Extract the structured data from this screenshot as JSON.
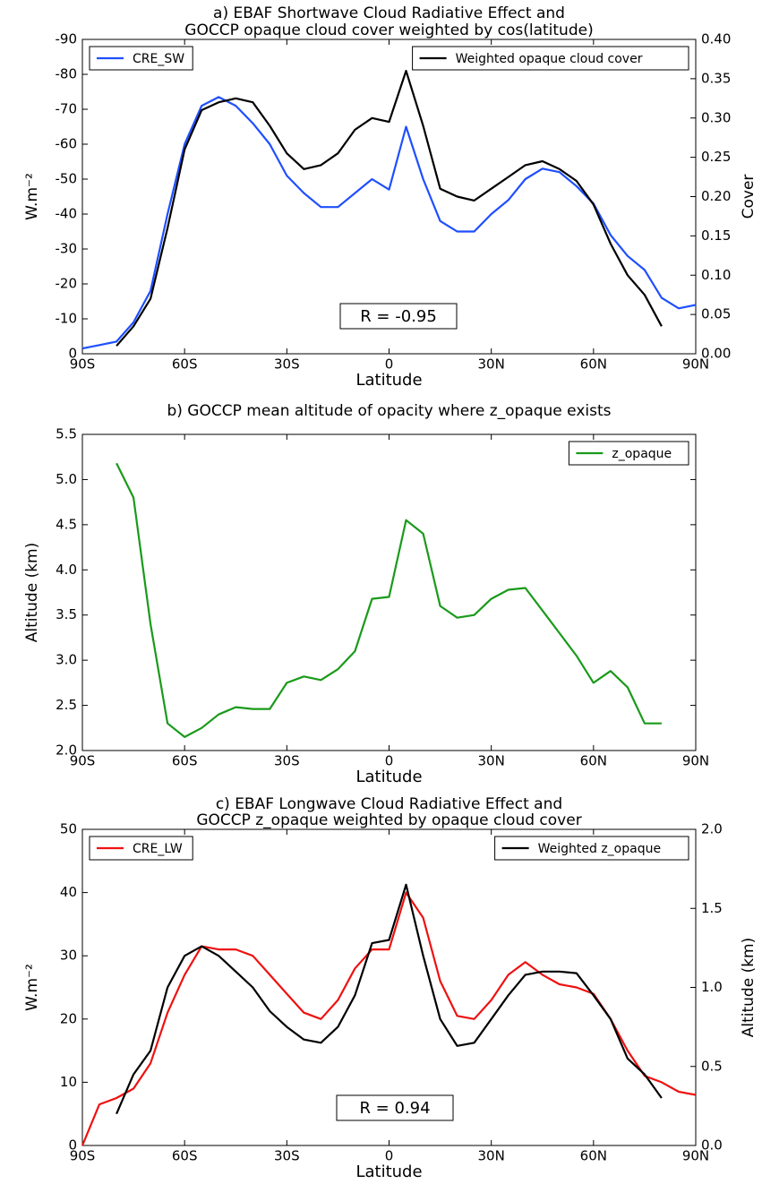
{
  "chart_data": [
    {
      "type": "line",
      "title": [
        "a) EBAF Shortwave Cloud Radiative Effect and",
        "GOCCP opaque cloud cover weighted by cos(latitude)"
      ],
      "xlabel": "Latitude",
      "ylabel": "W.m⁻²",
      "y2label": "Cover",
      "annotation": "R = -0.95",
      "x": [
        -90,
        -85,
        -80,
        -75,
        -70,
        -65,
        -60,
        -55,
        -50,
        -45,
        -40,
        -35,
        -30,
        -25,
        -20,
        -15,
        -10,
        -5,
        0,
        5,
        10,
        15,
        20,
        25,
        30,
        35,
        40,
        45,
        50,
        55,
        60,
        65,
        70,
        75,
        80,
        85,
        90
      ],
      "xlim": [
        -90,
        90
      ],
      "xticks": [
        {
          "value": -90,
          "label": "90S"
        },
        {
          "value": -60,
          "label": "60S"
        },
        {
          "value": -30,
          "label": "30S"
        },
        0,
        {
          "value": 30,
          "label": "30N"
        },
        {
          "value": 60,
          "label": "60N"
        },
        {
          "value": 90,
          "label": "90N"
        }
      ],
      "ylim": [
        0,
        -90
      ],
      "yticks": [
        0,
        -10,
        -20,
        -30,
        -40,
        -50,
        -60,
        -70,
        -80,
        -90
      ],
      "y2lim": [
        0,
        0.4
      ],
      "y2ticks": [
        {
          "value": 0,
          "label": "0.00"
        },
        {
          "value": 0.05,
          "label": "0.05"
        },
        {
          "value": 0.1,
          "label": "0.10"
        },
        {
          "value": 0.15,
          "label": "0.15"
        },
        {
          "value": 0.2,
          "label": "0.20"
        },
        {
          "value": 0.25,
          "label": "0.25"
        },
        {
          "value": 0.3,
          "label": "0.30"
        },
        {
          "value": 0.35,
          "label": "0.35"
        },
        {
          "value": 0.4,
          "label": "0.40"
        }
      ],
      "series": [
        {
          "name": "CRE_SW",
          "color": "#1f4fff",
          "legend": "upper left",
          "values": [
            -1.5,
            -2.5,
            -3.5,
            -9,
            -18,
            -40,
            -60,
            -71,
            -73.5,
            -71,
            -66,
            -60,
            -51,
            -46,
            -42,
            -42,
            -46,
            -50,
            -47,
            -65,
            -50,
            -38,
            -35,
            -35,
            -40,
            -44,
            -50,
            -53,
            -52,
            -48,
            -43,
            -34,
            -28,
            -24,
            -16,
            -13,
            -14
          ]
        },
        {
          "name": "Weighted opaque cloud cover",
          "color": "#000000",
          "legend": "upper right",
          "axis": "y2",
          "values": [
            null,
            null,
            0.01,
            0.035,
            0.07,
            0.16,
            0.26,
            0.31,
            0.32,
            0.325,
            0.32,
            0.29,
            0.255,
            0.235,
            0.24,
            0.255,
            0.285,
            0.3,
            0.295,
            0.36,
            0.29,
            0.21,
            0.2,
            0.195,
            0.21,
            0.225,
            0.24,
            0.245,
            0.235,
            0.22,
            0.19,
            0.14,
            0.1,
            0.075,
            0.035,
            null,
            null
          ]
        }
      ]
    },
    {
      "type": "line",
      "title": [
        "b) GOCCP mean altitude of opacity where z_opaque exists"
      ],
      "xlabel": "Latitude",
      "ylabel": "Altitude (km)",
      "x": [
        -90,
        -85,
        -80,
        -75,
        -70,
        -65,
        -60,
        -55,
        -50,
        -45,
        -40,
        -35,
        -30,
        -25,
        -20,
        -15,
        -10,
        -5,
        0,
        5,
        10,
        15,
        20,
        25,
        30,
        35,
        40,
        45,
        50,
        55,
        60,
        65,
        70,
        75,
        80,
        85,
        90
      ],
      "xlim": [
        -90,
        90
      ],
      "xticks": [
        {
          "value": -90,
          "label": "90S"
        },
        {
          "value": -60,
          "label": "60S"
        },
        {
          "value": -30,
          "label": "30S"
        },
        0,
        {
          "value": 30,
          "label": "30N"
        },
        {
          "value": 60,
          "label": "60N"
        },
        {
          "value": 90,
          "label": "90N"
        }
      ],
      "ylim": [
        2,
        5.5
      ],
      "yticks": [
        {
          "value": 2,
          "label": "2.0"
        },
        2.5,
        {
          "value": 3,
          "label": "3.0"
        },
        3.5,
        {
          "value": 4,
          "label": "4.0"
        },
        4.5,
        {
          "value": 5,
          "label": "5.0"
        },
        5.5
      ],
      "series": [
        {
          "name": "z_opaque",
          "color": "#1a9a1a",
          "legend": "upper right",
          "values": [
            null,
            null,
            5.18,
            4.8,
            3.4,
            2.3,
            2.15,
            2.25,
            2.4,
            2.48,
            2.46,
            2.46,
            2.75,
            2.82,
            2.78,
            2.9,
            3.1,
            3.68,
            3.7,
            4.55,
            4.4,
            3.6,
            3.47,
            3.5,
            3.68,
            3.78,
            3.8,
            3.55,
            3.3,
            3.05,
            2.75,
            2.88,
            2.7,
            2.3,
            2.3,
            null,
            null
          ]
        }
      ]
    },
    {
      "type": "line",
      "title": [
        "c) EBAF Longwave Cloud Radiative Effect and",
        "GOCCP z_opaque weighted by opaque cloud cover"
      ],
      "xlabel": "Latitude",
      "ylabel": "W.m⁻²",
      "y2label": "Altitude (km)",
      "annotation": "R = 0.94",
      "x": [
        -90,
        -85,
        -80,
        -75,
        -70,
        -65,
        -60,
        -55,
        -50,
        -45,
        -40,
        -35,
        -30,
        -25,
        -20,
        -15,
        -10,
        -5,
        0,
        5,
        10,
        15,
        20,
        25,
        30,
        35,
        40,
        45,
        50,
        55,
        60,
        65,
        70,
        75,
        80,
        85,
        90
      ],
      "xlim": [
        -90,
        90
      ],
      "xticks": [
        {
          "value": -90,
          "label": "90S"
        },
        {
          "value": -60,
          "label": "60S"
        },
        {
          "value": -30,
          "label": "30S"
        },
        0,
        {
          "value": 30,
          "label": "30N"
        },
        {
          "value": 60,
          "label": "60N"
        },
        {
          "value": 90,
          "label": "90N"
        }
      ],
      "ylim": [
        0,
        50
      ],
      "yticks": [
        0,
        10,
        20,
        30,
        40,
        50
      ],
      "y2lim": [
        0,
        2
      ],
      "y2ticks": [
        {
          "value": 0,
          "label": "0.0"
        },
        0.5,
        {
          "value": 1,
          "label": "1.0"
        },
        1.5,
        {
          "value": 2,
          "label": "2.0"
        }
      ],
      "series": [
        {
          "name": "CRE_LW",
          "color": "#ee1111",
          "legend": "upper left",
          "values": [
            0,
            6.5,
            7.5,
            9,
            13,
            21,
            27,
            31.5,
            31,
            31,
            30,
            27,
            24,
            21,
            20,
            23,
            28,
            31,
            31,
            40,
            36,
            26,
            20.5,
            20,
            23,
            27,
            29,
            27,
            25.5,
            25,
            24,
            20,
            15,
            11,
            10,
            8.5,
            8
          ]
        },
        {
          "name": "Weighted z_opaque",
          "color": "#000000",
          "legend": "upper right",
          "axis": "y2",
          "values": [
            null,
            null,
            0.2,
            0.45,
            0.6,
            1.0,
            1.2,
            1.26,
            1.2,
            1.1,
            1.0,
            0.85,
            0.75,
            0.67,
            0.65,
            0.75,
            0.95,
            1.28,
            1.3,
            1.65,
            1.2,
            0.8,
            0.63,
            0.65,
            0.8,
            0.95,
            1.08,
            1.1,
            1.1,
            1.09,
            0.95,
            0.8,
            0.55,
            0.45,
            0.3,
            null,
            null
          ]
        }
      ]
    }
  ]
}
